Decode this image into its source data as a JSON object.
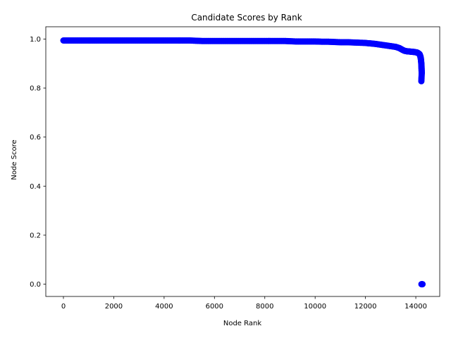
{
  "chart_data": {
    "type": "scatter",
    "title": "Candidate Scores by Rank",
    "xlabel": "Node Rank",
    "ylabel": "Node Score",
    "xlim": [
      -700,
      14950
    ],
    "ylim": [
      -0.05,
      1.05
    ],
    "xticks": [
      0,
      2000,
      4000,
      6000,
      8000,
      10000,
      12000,
      14000
    ],
    "yticks": [
      0.0,
      0.2,
      0.4,
      0.6,
      0.8,
      1.0
    ],
    "ytick_labels": [
      "0.0",
      "0.2",
      "0.4",
      "0.6",
      "0.8",
      "1.0"
    ],
    "grid": false,
    "marker_color": "#0000ff",
    "series": [
      {
        "points": [
          [
            0,
            0.994
          ],
          [
            250,
            0.994
          ],
          [
            500,
            0.994
          ],
          [
            750,
            0.994
          ],
          [
            1000,
            0.994
          ],
          [
            1250,
            0.994
          ],
          [
            1500,
            0.994
          ],
          [
            1750,
            0.994
          ],
          [
            2000,
            0.994
          ],
          [
            2250,
            0.994
          ],
          [
            2500,
            0.994
          ],
          [
            2750,
            0.994
          ],
          [
            3000,
            0.994
          ],
          [
            3250,
            0.994
          ],
          [
            3500,
            0.994
          ],
          [
            3750,
            0.994
          ],
          [
            4000,
            0.994
          ],
          [
            4250,
            0.994
          ],
          [
            4500,
            0.994
          ],
          [
            4750,
            0.994
          ],
          [
            5000,
            0.994
          ],
          [
            5250,
            0.993
          ],
          [
            5500,
            0.992
          ],
          [
            5750,
            0.992
          ],
          [
            6000,
            0.992
          ],
          [
            6250,
            0.992
          ],
          [
            6500,
            0.992
          ],
          [
            6750,
            0.992
          ],
          [
            7000,
            0.992
          ],
          [
            7250,
            0.992
          ],
          [
            7500,
            0.992
          ],
          [
            7750,
            0.992
          ],
          [
            8000,
            0.992
          ],
          [
            8250,
            0.992
          ],
          [
            8500,
            0.992
          ],
          [
            8750,
            0.992
          ],
          [
            9000,
            0.991
          ],
          [
            9250,
            0.99
          ],
          [
            9500,
            0.99
          ],
          [
            9750,
            0.99
          ],
          [
            10000,
            0.99
          ],
          [
            10250,
            0.989
          ],
          [
            10500,
            0.989
          ],
          [
            10750,
            0.988
          ],
          [
            11000,
            0.987
          ],
          [
            11250,
            0.987
          ],
          [
            11500,
            0.986
          ],
          [
            11750,
            0.985
          ],
          [
            12000,
            0.984
          ],
          [
            12200,
            0.982
          ],
          [
            12400,
            0.98
          ],
          [
            12600,
            0.977
          ],
          [
            12800,
            0.974
          ],
          [
            13000,
            0.971
          ],
          [
            13200,
            0.968
          ],
          [
            13350,
            0.963
          ],
          [
            13450,
            0.957
          ],
          [
            13550,
            0.952
          ],
          [
            13650,
            0.95
          ],
          [
            13750,
            0.949
          ],
          [
            13850,
            0.948
          ],
          [
            13950,
            0.947
          ],
          [
            14050,
            0.945
          ],
          [
            14100,
            0.942
          ],
          [
            14150,
            0.938
          ],
          [
            14180,
            0.93
          ],
          [
            14200,
            0.92
          ],
          [
            14215,
            0.905
          ],
          [
            14225,
            0.89
          ],
          [
            14230,
            0.875
          ],
          [
            14235,
            0.86
          ],
          [
            14220,
            0.828
          ],
          [
            14225,
            0.0
          ],
          [
            14235,
            0.0
          ],
          [
            14245,
            0.0
          ],
          [
            14255,
            0.0
          ],
          [
            14265,
            0.0
          ]
        ]
      }
    ]
  }
}
